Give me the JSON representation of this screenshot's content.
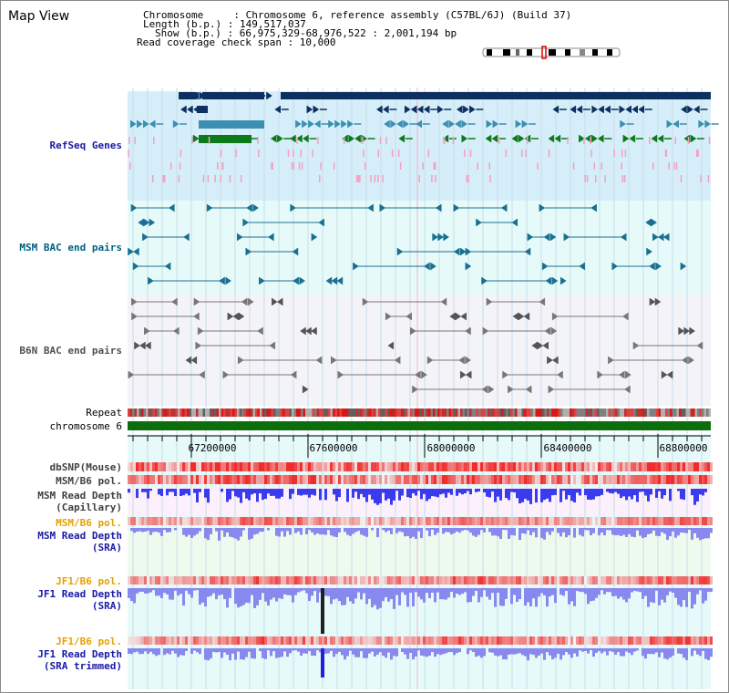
{
  "header": {
    "view_title": "Map View",
    "chromosome_line": "Chromosome     : Chromosome 6, reference assembly (C57BL/6J) (Build 37)",
    "length_line": "Length (b.p.) : 149,517,037",
    "show_line": "Show (b.p.) : 66,975,329-68,976,522 : 2,001,194 bp",
    "span_line": "Read coverage check span : 10,000"
  },
  "tracks": {
    "refseq": "RefSeq Genes",
    "msm_bac": "MSM BAC end pairs",
    "b6n_bac": "B6N BAC end pairs",
    "repeat": "Repeat",
    "chromosome": "chromosome 6",
    "dbsnp": "dbSNP(Mouse)",
    "msm_b6_pol_1": "MSM/B6 pol.",
    "msm_depth_cap_1": "MSM Read Depth",
    "msm_depth_cap_2": "(Capillary)",
    "msm_b6_pol_2": "MSM/B6 pol.",
    "msm_depth_sra_1": "MSM Read Depth",
    "msm_depth_sra_2": "(SRA)",
    "jf1_b6_pol_1": "JF1/B6 pol.",
    "jf1_depth_sra_1": "JF1 Read Depth",
    "jf1_depth_sra_2": "(SRA)",
    "jf1_b6_pol_2": "JF1/B6 pol.",
    "jf1_depth_trim_1": "JF1 Read Depth",
    "jf1_depth_trim_2": "(SRA trimmed)"
  },
  "axis": {
    "ticks": [
      "67200000",
      "67600000",
      "68000000",
      "68400000",
      "68800000"
    ]
  },
  "colors": {
    "refseq_bg": "#d6eefa",
    "msm_bac_bg": "#e6fafa",
    "b6n_bac_bg": "#f4f4f8",
    "gene_dark": "#0c3060",
    "gene_blue": "#3a6fa5",
    "gene_teal": "#3b8fb0",
    "gene_green": "#0d7a1a",
    "gene_pink": "#f4a0c0",
    "bac_teal": "#1a7090",
    "bac_gray": "#777777",
    "chromosome_bar": "#0c6e0c",
    "depth_blue": "#3a3aee",
    "depth_light": "#8888ee",
    "pol_red": "#ee3030",
    "pol_pink": "#f6b0b0",
    "lower_bg": "#e6fafa",
    "pink_bg": "#fbf0fb",
    "green_bg": "#eefaee"
  }
}
